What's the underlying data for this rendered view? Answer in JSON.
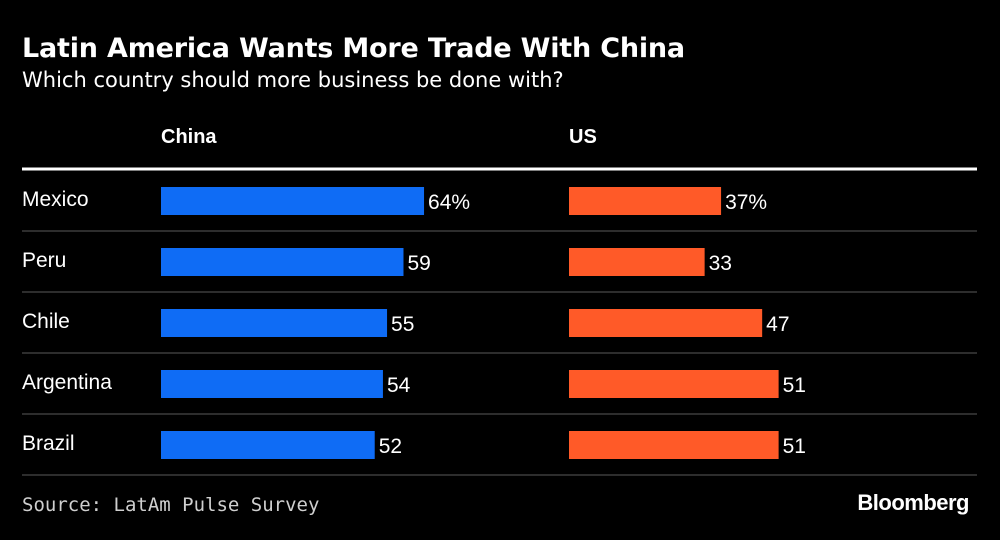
{
  "title": "Latin America Wants More Trade With China",
  "subtitle": "Which country should more business be done with?",
  "source": "Source: LatAm Pulse Survey",
  "logo": "Bloomberg",
  "colors": {
    "china": "#0f6cf5",
    "us": "#ff5a28",
    "background": "#000000",
    "rule": "#3c3c3c"
  },
  "chart_data": {
    "type": "bar",
    "orientation": "horizontal",
    "categories": [
      "Mexico",
      "Peru",
      "Chile",
      "Argentina",
      "Brazil"
    ],
    "value_labels": [
      [
        "64%",
        "59",
        "55",
        "54",
        "52"
      ],
      [
        "37%",
        "33",
        "47",
        "51",
        "51"
      ]
    ],
    "series": [
      {
        "name": "China",
        "values": [
          64,
          59,
          55,
          54,
          52
        ]
      },
      {
        "name": "US",
        "values": [
          37,
          33,
          47,
          51,
          51
        ]
      }
    ],
    "unit": "%",
    "xlim": [
      0,
      100
    ],
    "grid": false,
    "legend": "column headers"
  }
}
